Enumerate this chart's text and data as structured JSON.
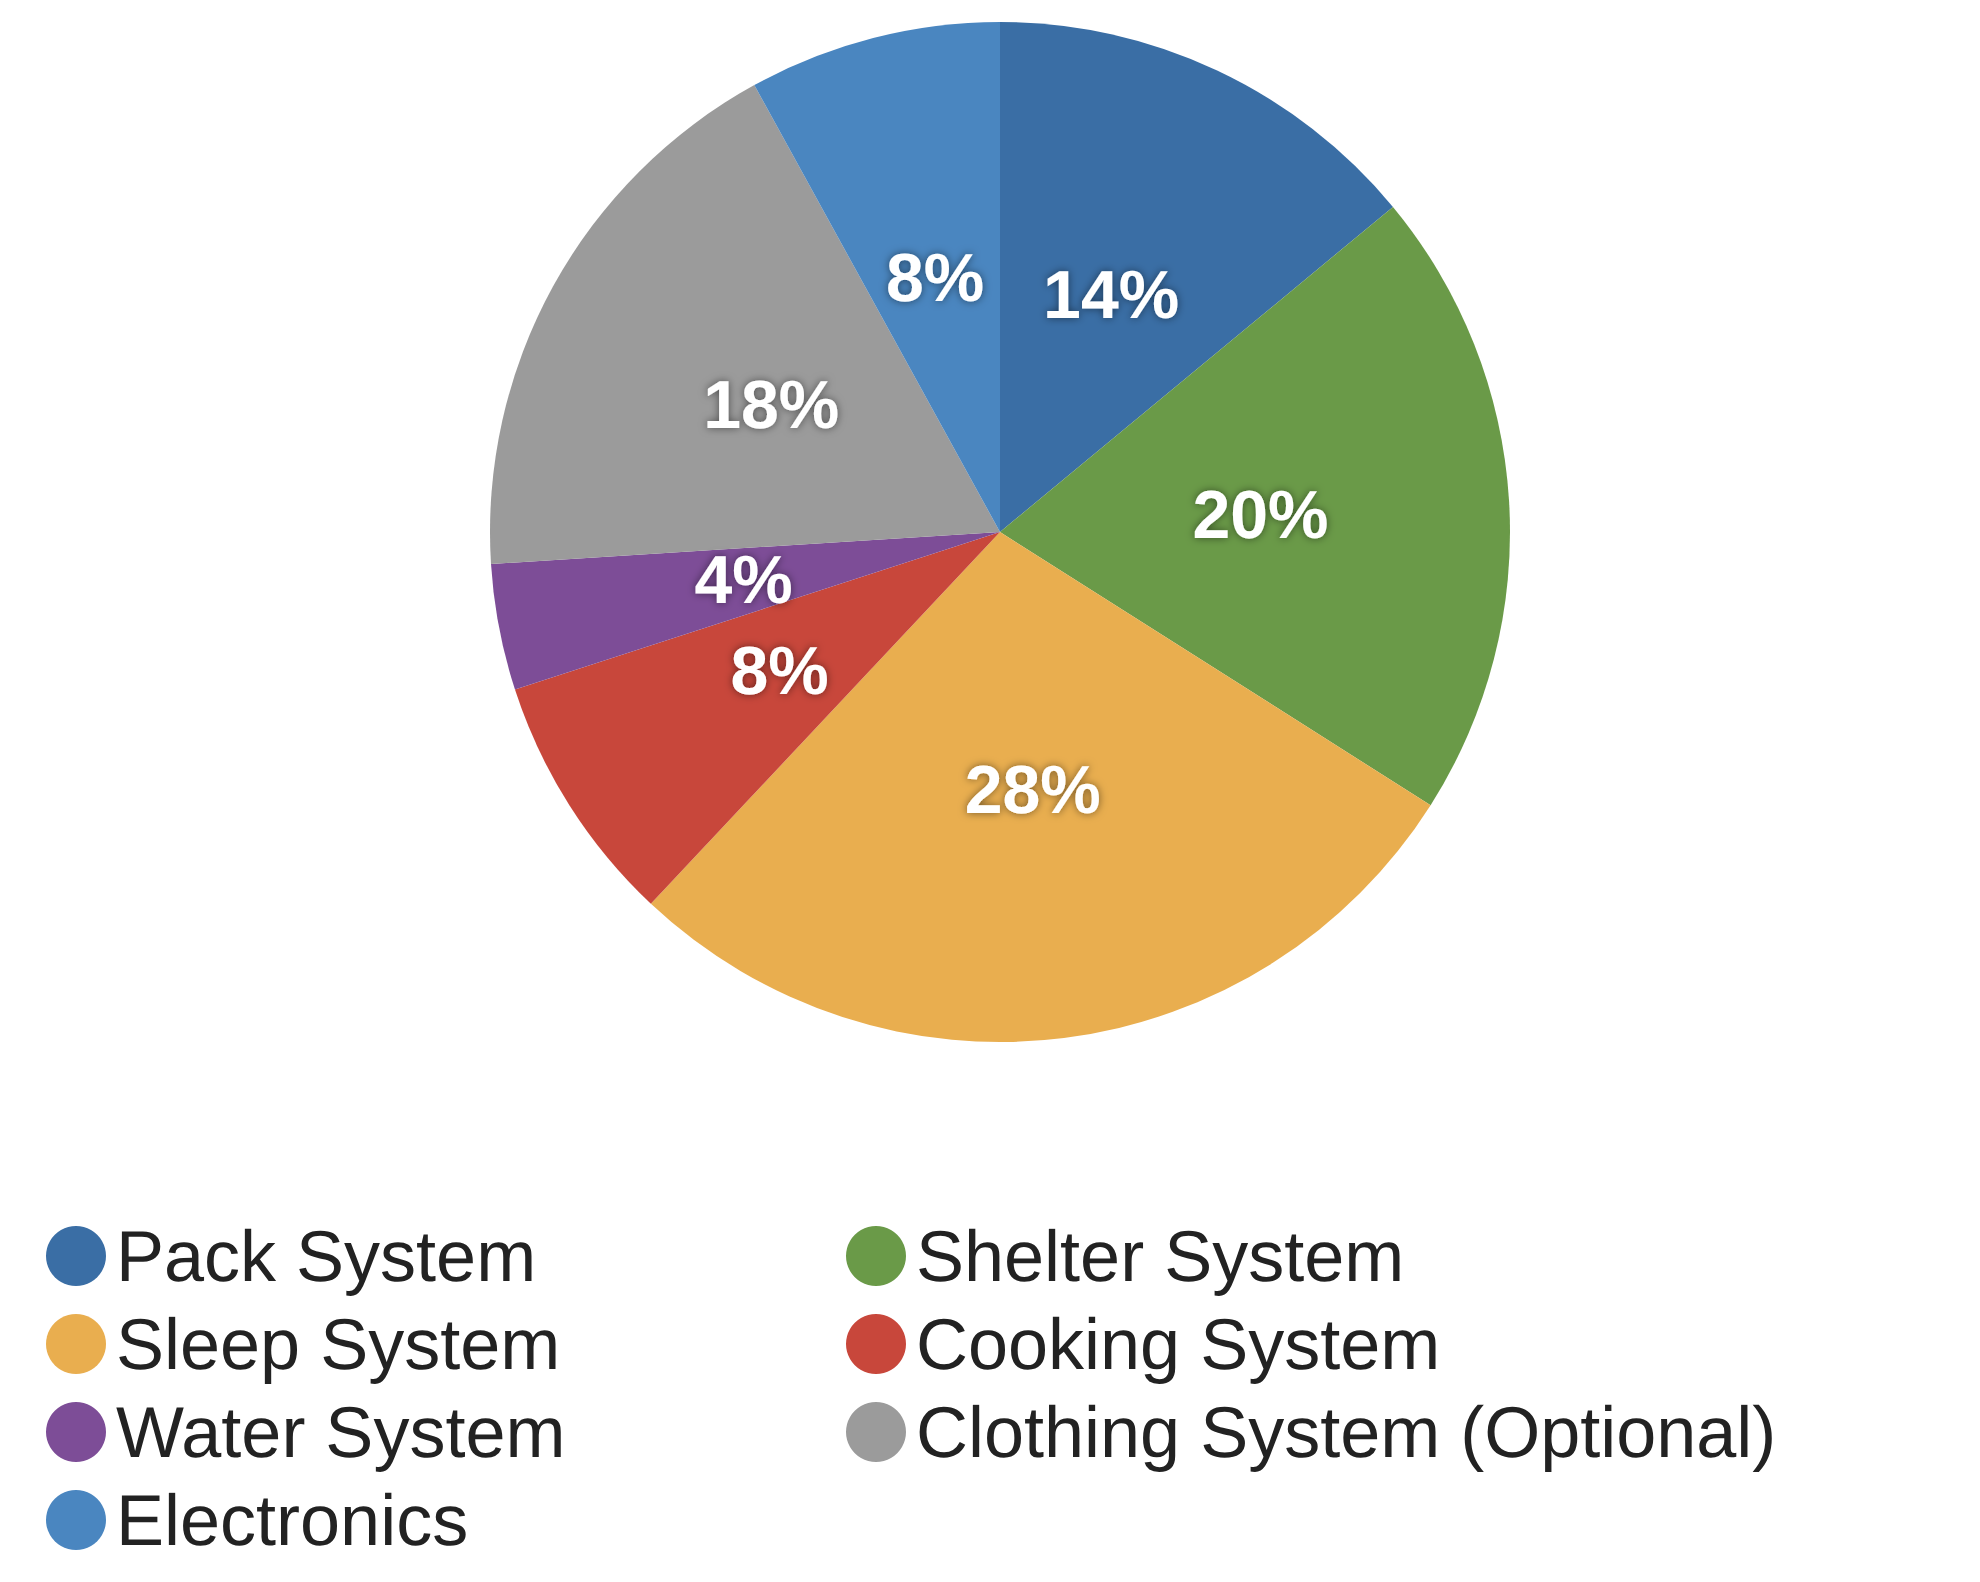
{
  "chart_data": {
    "type": "pie",
    "categories": [
      "Pack System",
      "Shelter System",
      "Sleep System",
      "Cooking System",
      "Water System",
      "Clothing System (Optional)",
      "Electronics"
    ],
    "values": [
      14,
      20,
      28,
      8,
      4,
      18,
      8
    ],
    "value_labels": [
      "14%",
      "20%",
      "28%",
      "8%",
      "4%",
      "18%",
      "8%"
    ],
    "colors": [
      "#3a6ea5",
      "#6a9a48",
      "#e9ae4f",
      "#c8473b",
      "#7d4d97",
      "#9b9b9b",
      "#4a86c0"
    ],
    "legend": "bottom"
  }
}
